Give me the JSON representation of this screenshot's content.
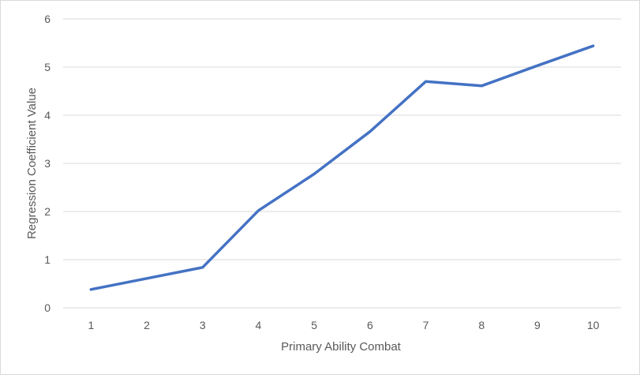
{
  "chart_data": {
    "type": "line",
    "title": "",
    "xlabel": "Primary Ability Combat",
    "ylabel": "Regression Coefficient Value",
    "x": [
      1,
      2,
      3,
      4,
      5,
      6,
      7,
      8,
      9,
      10
    ],
    "series": [
      {
        "name": "",
        "values": [
          0.38,
          0.61,
          0.84,
          2.02,
          2.78,
          3.66,
          4.7,
          4.61,
          5.03,
          5.44
        ]
      }
    ],
    "ylim": [
      0,
      6
    ],
    "yticks": [
      0,
      1,
      2,
      3,
      4,
      5,
      6
    ],
    "grid": true,
    "legend": "none",
    "colors": {
      "line": "#4472c4",
      "grid": "#d9d9d9",
      "text": "#595959"
    }
  }
}
